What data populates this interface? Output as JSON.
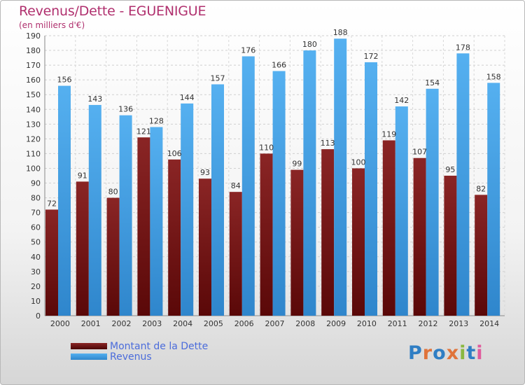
{
  "chart_data": {
    "type": "bar",
    "title": "Revenus/Dette - EGUENIGUE",
    "subtitle": "(en milliers d'€)",
    "categories": [
      "2000",
      "2001",
      "2002",
      "2003",
      "2004",
      "2005",
      "2006",
      "2007",
      "2008",
      "2009",
      "2010",
      "2011",
      "2012",
      "2013",
      "2014"
    ],
    "series": [
      {
        "name": "Montant de la Dette",
        "color": "#7a1515",
        "values": [
          72,
          91,
          80,
          121,
          106,
          93,
          84,
          110,
          99,
          113,
          100,
          119,
          107,
          95,
          82
        ]
      },
      {
        "name": "Revenus",
        "color": "#3f9ee6",
        "values": [
          156,
          143,
          136,
          128,
          144,
          157,
          176,
          166,
          180,
          188,
          172,
          142,
          154,
          178,
          158
        ]
      }
    ],
    "ylim": [
      0,
      190
    ],
    "ytick_step": 10,
    "grid": true,
    "legend_position": "bottom-left"
  },
  "logo": {
    "text": "Proxiti",
    "letters": [
      {
        "ch": "P",
        "color": "#2f7ec4"
      },
      {
        "ch": "r",
        "color": "#e0733a"
      },
      {
        "ch": "o",
        "color": "#2f7ec4"
      },
      {
        "ch": "x",
        "color": "#e0733a"
      },
      {
        "ch": "i",
        "color": "#8ab840"
      },
      {
        "ch": "t",
        "color": "#2f7ec4"
      },
      {
        "ch": "i",
        "color": "#e05b9c"
      }
    ]
  }
}
